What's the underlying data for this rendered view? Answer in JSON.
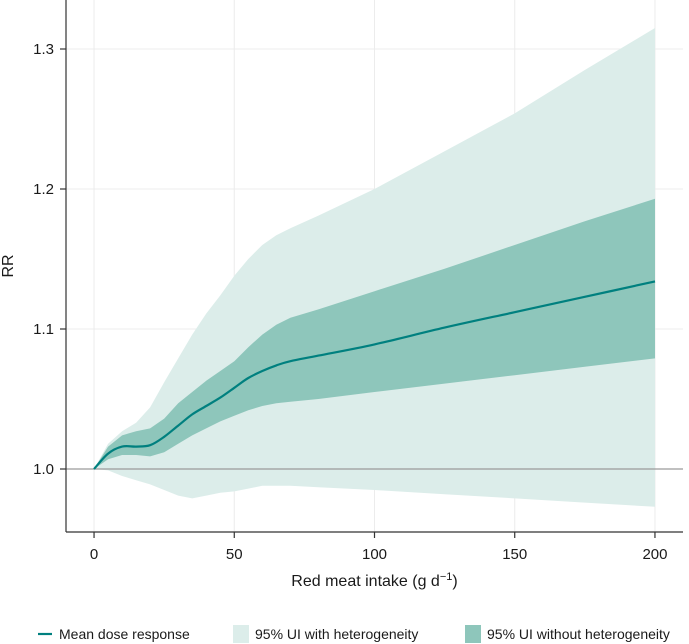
{
  "chart_data": {
    "type": "line",
    "xlabel": "Red meat intake (g d",
    "xlabel_sup": "−1",
    "xlabel_end": ")",
    "ylabel": "RR",
    "xlim": [
      -10,
      210
    ],
    "ylim": [
      0.955,
      1.335
    ],
    "x_ticks": [
      0,
      50,
      100,
      150,
      200
    ],
    "x_tick_labels": [
      "0",
      "50",
      "100",
      "150",
      "200"
    ],
    "y_ticks": [
      1.0,
      1.1,
      1.2,
      1.3
    ],
    "y_tick_labels": [
      "1.0",
      "1.1",
      "1.2",
      "1.3"
    ],
    "reference_line_y": 1.0,
    "grid": true,
    "legend_position": "bottom",
    "colors": {
      "mean": "#00807f",
      "band_with_heterogeneity": "#dcedea",
      "band_without_heterogeneity": "#8ec6bb",
      "grid": "#ececec",
      "reference": "#9a9a9a",
      "axis": "#333333"
    },
    "series": [
      {
        "name": "Mean dose response",
        "x": [
          0,
          5,
          10,
          15,
          20,
          25,
          30,
          35,
          40,
          45,
          50,
          55,
          60,
          65,
          70,
          80,
          100,
          125,
          150,
          175,
          200
        ],
        "y": [
          1.0,
          1.011,
          1.016,
          1.016,
          1.017,
          1.023,
          1.031,
          1.039,
          1.045,
          1.051,
          1.058,
          1.065,
          1.07,
          1.074,
          1.077,
          1.081,
          1.089,
          1.101,
          1.112,
          1.123,
          1.134
        ]
      },
      {
        "name": "95% UI with heterogeneity",
        "x": [
          0,
          5,
          10,
          15,
          20,
          25,
          30,
          35,
          40,
          45,
          50,
          55,
          60,
          65,
          70,
          80,
          100,
          125,
          150,
          175,
          200
        ],
        "lower": [
          1.0,
          0.999,
          0.995,
          0.992,
          0.989,
          0.985,
          0.981,
          0.979,
          0.981,
          0.983,
          0.984,
          0.986,
          0.988,
          0.988,
          0.988,
          0.987,
          0.985,
          0.982,
          0.979,
          0.976,
          0.973
        ],
        "upper": [
          1.0,
          1.018,
          1.027,
          1.033,
          1.044,
          1.062,
          1.079,
          1.096,
          1.111,
          1.124,
          1.138,
          1.15,
          1.16,
          1.167,
          1.172,
          1.181,
          1.2,
          1.227,
          1.254,
          1.285,
          1.315
        ]
      },
      {
        "name": "95% UI without heterogeneity",
        "x": [
          0,
          5,
          10,
          15,
          20,
          25,
          30,
          35,
          40,
          45,
          50,
          55,
          60,
          65,
          70,
          80,
          100,
          125,
          150,
          175,
          200
        ],
        "lower": [
          1.0,
          1.007,
          1.01,
          1.01,
          1.009,
          1.012,
          1.018,
          1.024,
          1.029,
          1.034,
          1.038,
          1.042,
          1.045,
          1.047,
          1.048,
          1.05,
          1.055,
          1.061,
          1.067,
          1.073,
          1.079
        ],
        "upper": [
          1.0,
          1.016,
          1.024,
          1.027,
          1.029,
          1.036,
          1.047,
          1.055,
          1.063,
          1.07,
          1.077,
          1.087,
          1.096,
          1.103,
          1.108,
          1.114,
          1.127,
          1.143,
          1.16,
          1.177,
          1.193
        ]
      }
    ],
    "legend": [
      {
        "label": "Mean dose response",
        "kind": "line"
      },
      {
        "label": "95% UI with heterogeneity",
        "kind": "band_with_heterogeneity"
      },
      {
        "label": "95% UI without heterogeneity",
        "kind": "band_without_heterogeneity"
      }
    ]
  }
}
